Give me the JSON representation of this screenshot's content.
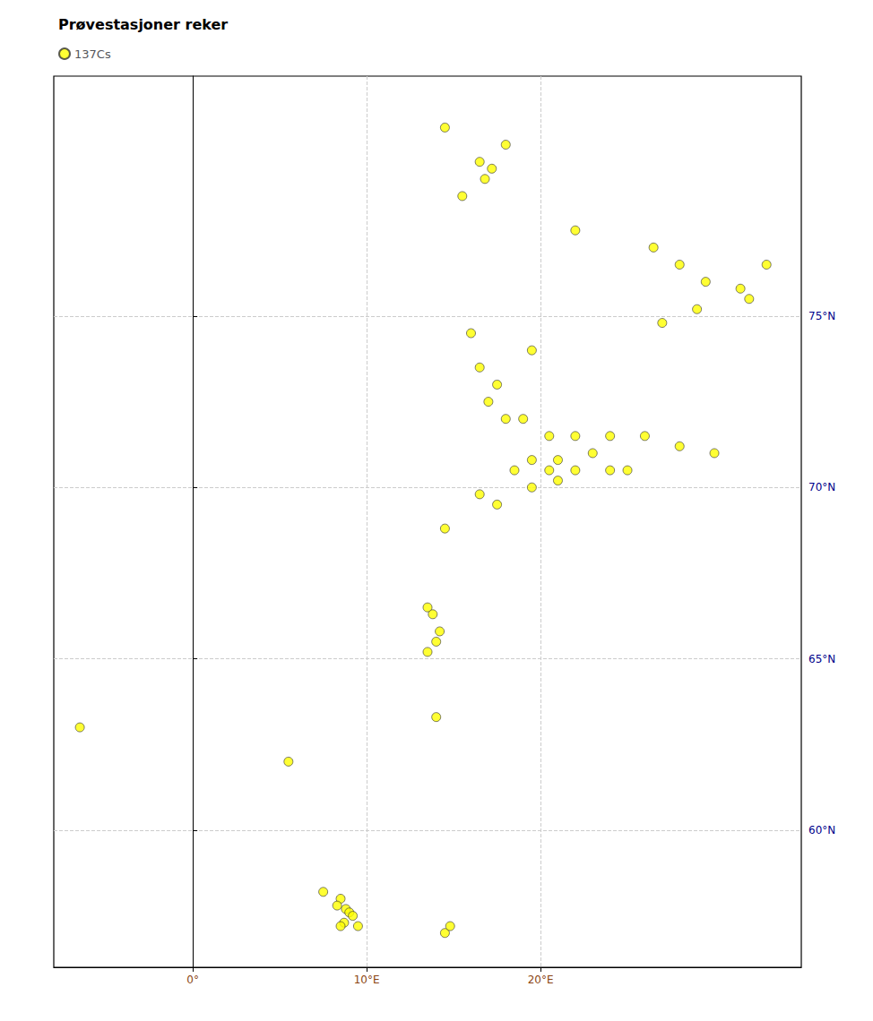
{
  "chart_data": {
    "type": "scatter",
    "title": "Prøvestasjoner reker",
    "x": [
      14.5,
      18.0,
      16.5,
      17.2,
      16.8,
      15.5,
      22.0,
      26.5,
      28.0,
      33.0,
      29.5,
      31.5,
      32.0,
      29.0,
      27.0,
      16.0,
      19.5,
      16.5,
      17.5,
      17.0,
      18.0,
      19.0,
      20.5,
      22.0,
      24.0,
      26.0,
      28.0,
      30.0,
      23.0,
      21.0,
      19.5,
      18.5,
      20.5,
      22.0,
      24.0,
      25.0,
      21.0,
      19.5,
      16.5,
      17.5,
      14.5,
      13.5,
      13.8,
      14.2,
      14.0,
      13.5,
      14.0,
      5.5,
      8.5,
      8.3,
      8.8,
      9.0,
      9.2,
      8.7,
      8.5,
      14.5,
      14.8,
      -6.5,
      7.5,
      9.5
    ],
    "series": [
      {
        "name": "137Cs",
        "color": "#FFFF00",
        "marker": "circle",
        "values": [
          80.5,
          80.0,
          79.5,
          79.3,
          79.0,
          78.5,
          77.5,
          77.0,
          76.5,
          76.5,
          76.0,
          75.8,
          75.5,
          75.2,
          74.8,
          74.5,
          74.0,
          73.5,
          73.0,
          72.5,
          72.0,
          72.0,
          71.5,
          71.5,
          71.5,
          71.5,
          71.2,
          71.0,
          71.0,
          70.8,
          70.8,
          70.5,
          70.5,
          70.5,
          70.5,
          70.5,
          70.2,
          70.0,
          69.8,
          69.5,
          68.8,
          66.5,
          66.3,
          65.8,
          65.5,
          65.2,
          63.3,
          62.0,
          58.0,
          57.8,
          57.7,
          57.6,
          57.5,
          57.3,
          57.2,
          57.0,
          57.2,
          63.0,
          58.2,
          57.2
        ]
      }
    ],
    "xlim": [
      -8,
      35
    ],
    "xticks": [
      {
        "value": 0,
        "label": "0°"
      },
      {
        "value": 10,
        "label": "10°E"
      },
      {
        "value": 20,
        "label": "20°E"
      }
    ],
    "ylim": [
      56,
      82
    ],
    "yticks": [
      {
        "value": 60,
        "label": "60°N"
      },
      {
        "value": 65,
        "label": "65°N"
      },
      {
        "value": 70,
        "label": "70°N"
      },
      {
        "value": 75,
        "label": "75°N"
      }
    ],
    "grid": true,
    "legend": "upper left"
  }
}
